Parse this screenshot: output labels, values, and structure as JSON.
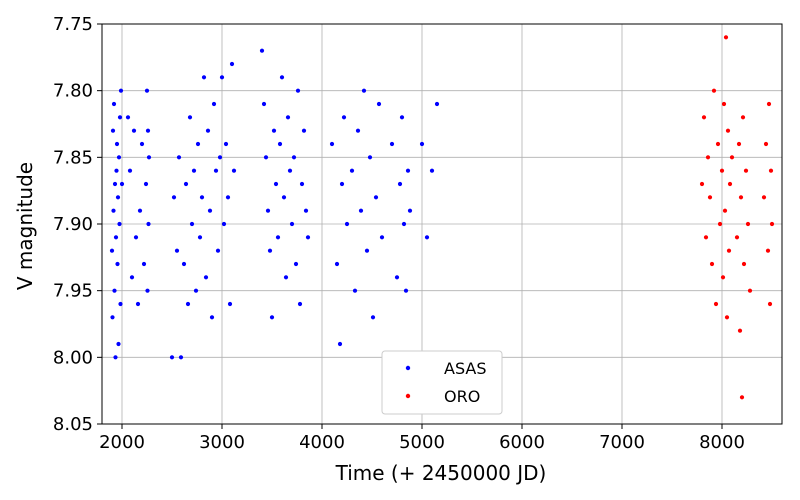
{
  "chart_data": {
    "type": "scatter",
    "title": "",
    "xlabel": "Time (+ 2450000 JD)",
    "ylabel": "V magnitude",
    "xlim": [
      1800,
      8600
    ],
    "ylim": [
      8.05,
      7.75
    ],
    "y_inverted": true,
    "xticks": [
      "2000",
      "3000",
      "4000",
      "5000",
      "6000",
      "7000",
      "8000"
    ],
    "yticks": [
      "7.75",
      "7.80",
      "7.85",
      "7.90",
      "7.95",
      "8.00",
      "8.05"
    ],
    "grid": true,
    "legend_position": "bottom-center",
    "series": [
      {
        "name": "ASAS",
        "color": "#0000ff",
        "points": [
          [
            1900,
            7.92
          ],
          [
            1905,
            7.97
          ],
          [
            1910,
            7.83
          ],
          [
            1915,
            7.89
          ],
          [
            1920,
            7.81
          ],
          [
            1925,
            7.95
          ],
          [
            1930,
            7.87
          ],
          [
            1935,
            8.0
          ],
          [
            1940,
            7.91
          ],
          [
            1945,
            7.86
          ],
          [
            1950,
            7.84
          ],
          [
            1955,
            7.93
          ],
          [
            1960,
            7.88
          ],
          [
            1965,
            7.99
          ],
          [
            1970,
            7.85
          ],
          [
            1975,
            7.9
          ],
          [
            1980,
            7.82
          ],
          [
            1985,
            7.96
          ],
          [
            1990,
            7.8
          ],
          [
            2000,
            7.87
          ],
          [
            2060,
            7.82
          ],
          [
            2080,
            7.86
          ],
          [
            2100,
            7.94
          ],
          [
            2120,
            7.83
          ],
          [
            2140,
            7.91
          ],
          [
            2160,
            7.96
          ],
          [
            2180,
            7.89
          ],
          [
            2200,
            7.84
          ],
          [
            2220,
            7.93
          ],
          [
            2240,
            7.87
          ],
          [
            2250,
            7.8
          ],
          [
            2255,
            7.95
          ],
          [
            2260,
            7.83
          ],
          [
            2265,
            7.9
          ],
          [
            2270,
            7.85
          ],
          [
            2500,
            8.0
          ],
          [
            2520,
            7.88
          ],
          [
            2550,
            7.92
          ],
          [
            2570,
            7.85
          ],
          [
            2590,
            8.0
          ],
          [
            2620,
            7.93
          ],
          [
            2640,
            7.87
          ],
          [
            2660,
            7.96
          ],
          [
            2680,
            7.82
          ],
          [
            2700,
            7.9
          ],
          [
            2720,
            7.86
          ],
          [
            2740,
            7.95
          ],
          [
            2760,
            7.84
          ],
          [
            2780,
            7.91
          ],
          [
            2800,
            7.88
          ],
          [
            2820,
            7.79
          ],
          [
            2840,
            7.94
          ],
          [
            2860,
            7.83
          ],
          [
            2880,
            7.89
          ],
          [
            2900,
            7.97
          ],
          [
            2920,
            7.81
          ],
          [
            2940,
            7.86
          ],
          [
            2960,
            7.92
          ],
          [
            2980,
            7.85
          ],
          [
            3000,
            7.79
          ],
          [
            3020,
            7.9
          ],
          [
            3040,
            7.84
          ],
          [
            3060,
            7.88
          ],
          [
            3080,
            7.96
          ],
          [
            3100,
            7.78
          ],
          [
            3120,
            7.86
          ],
          [
            3400,
            7.77
          ],
          [
            3420,
            7.81
          ],
          [
            3440,
            7.85
          ],
          [
            3460,
            7.89
          ],
          [
            3480,
            7.92
          ],
          [
            3500,
            7.97
          ],
          [
            3520,
            7.83
          ],
          [
            3540,
            7.87
          ],
          [
            3560,
            7.91
          ],
          [
            3580,
            7.84
          ],
          [
            3600,
            7.79
          ],
          [
            3620,
            7.88
          ],
          [
            3640,
            7.94
          ],
          [
            3660,
            7.82
          ],
          [
            3680,
            7.86
          ],
          [
            3700,
            7.9
          ],
          [
            3720,
            7.85
          ],
          [
            3740,
            7.93
          ],
          [
            3760,
            7.8
          ],
          [
            3780,
            7.96
          ],
          [
            3800,
            7.87
          ],
          [
            3820,
            7.83
          ],
          [
            3840,
            7.89
          ],
          [
            3860,
            7.91
          ],
          [
            4100,
            7.84
          ],
          [
            4150,
            7.93
          ],
          [
            4180,
            7.99
          ],
          [
            4200,
            7.87
          ],
          [
            4220,
            7.82
          ],
          [
            4250,
            7.9
          ],
          [
            4300,
            7.86
          ],
          [
            4330,
            7.95
          ],
          [
            4360,
            7.83
          ],
          [
            4390,
            7.89
          ],
          [
            4420,
            7.8
          ],
          [
            4450,
            7.92
          ],
          [
            4480,
            7.85
          ],
          [
            4510,
            7.97
          ],
          [
            4540,
            7.88
          ],
          [
            4570,
            7.81
          ],
          [
            4600,
            7.91
          ],
          [
            4700,
            7.84
          ],
          [
            4750,
            7.94
          ],
          [
            4780,
            7.87
          ],
          [
            4800,
            7.82
          ],
          [
            4820,
            7.9
          ],
          [
            4840,
            7.95
          ],
          [
            4860,
            7.86
          ],
          [
            4880,
            7.89
          ],
          [
            5000,
            7.84
          ],
          [
            5050,
            7.91
          ],
          [
            5100,
            7.86
          ],
          [
            5150,
            7.81
          ]
        ]
      },
      {
        "name": "ORO",
        "color": "#ff0000",
        "points": [
          [
            7800,
            7.87
          ],
          [
            7820,
            7.82
          ],
          [
            7840,
            7.91
          ],
          [
            7860,
            7.85
          ],
          [
            7880,
            7.88
          ],
          [
            7900,
            7.93
          ],
          [
            7920,
            7.8
          ],
          [
            7940,
            7.96
          ],
          [
            7960,
            7.84
          ],
          [
            7980,
            7.9
          ],
          [
            8000,
            7.86
          ],
          [
            8010,
            7.94
          ],
          [
            8020,
            7.81
          ],
          [
            8030,
            7.89
          ],
          [
            8040,
            7.76
          ],
          [
            8050,
            7.97
          ],
          [
            8060,
            7.83
          ],
          [
            8070,
            7.92
          ],
          [
            8080,
            7.87
          ],
          [
            8100,
            7.85
          ],
          [
            8150,
            7.91
          ],
          [
            8170,
            7.84
          ],
          [
            8180,
            7.98
          ],
          [
            8190,
            7.88
          ],
          [
            8200,
            8.03
          ],
          [
            8210,
            7.82
          ],
          [
            8220,
            7.93
          ],
          [
            8240,
            7.86
          ],
          [
            8260,
            7.9
          ],
          [
            8280,
            7.95
          ],
          [
            8420,
            7.88
          ],
          [
            8440,
            7.84
          ],
          [
            8460,
            7.92
          ],
          [
            8470,
            7.81
          ],
          [
            8480,
            7.96
          ],
          [
            8490,
            7.86
          ],
          [
            8500,
            7.9
          ]
        ]
      }
    ]
  }
}
